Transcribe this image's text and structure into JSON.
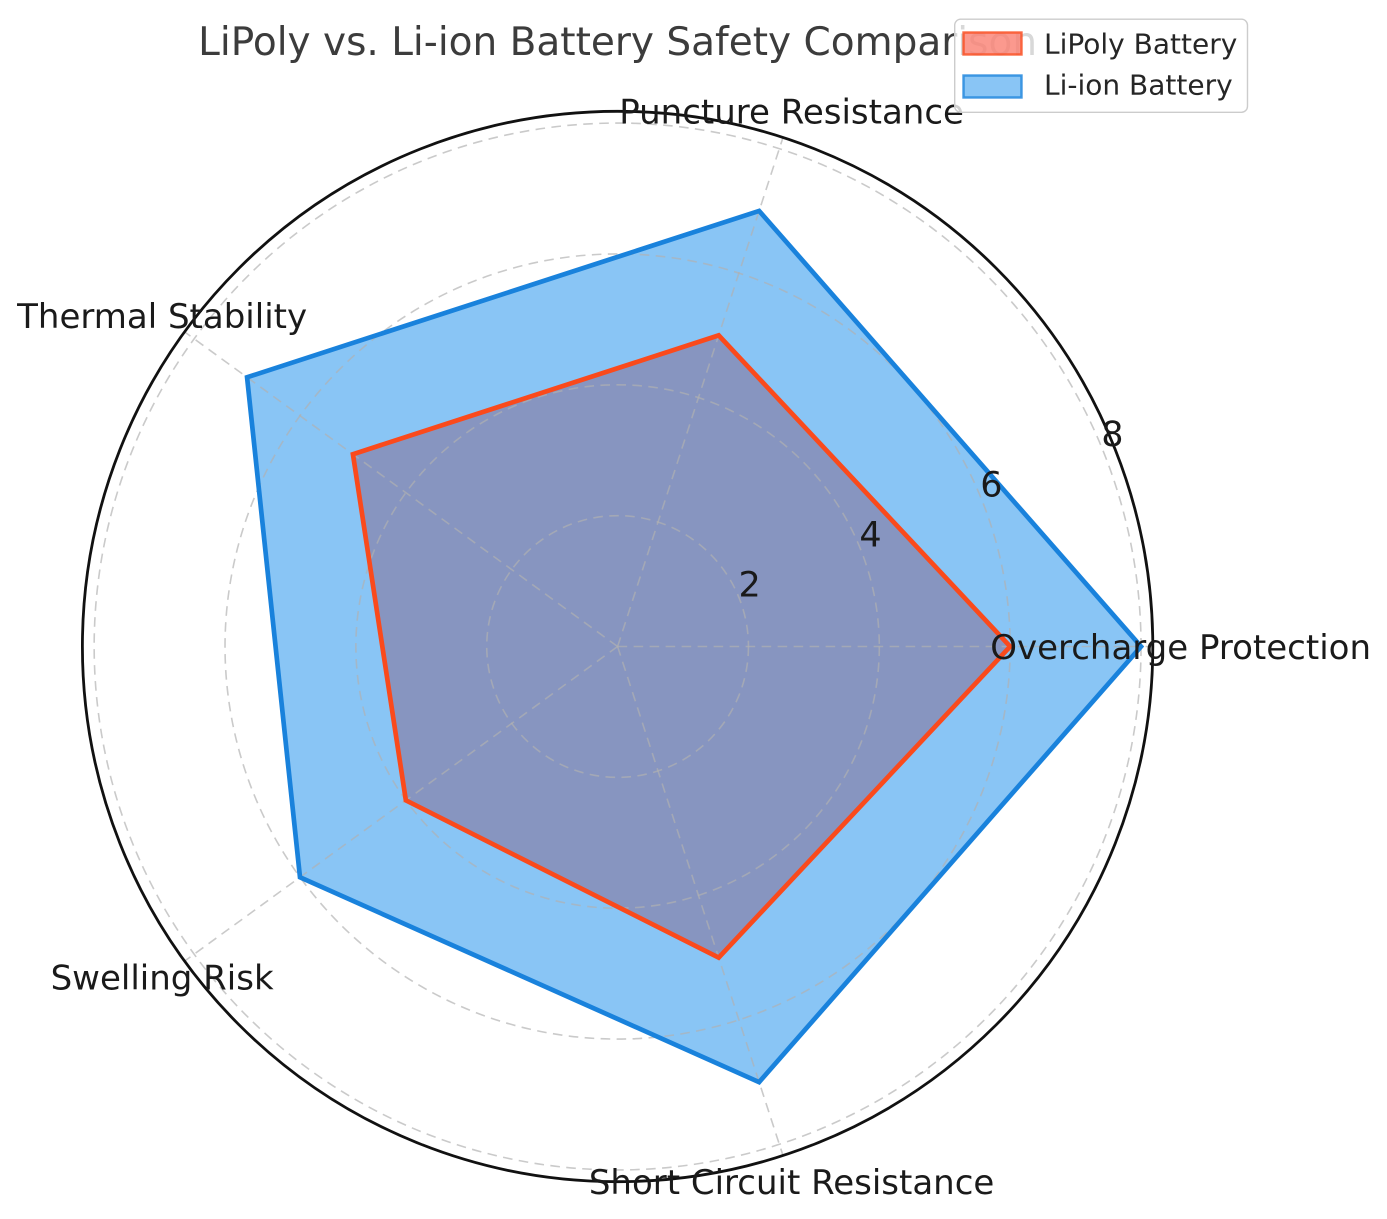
{
  "chart_data": {
    "type": "radar",
    "title": "LiPoly vs. Li-ion Battery Safety Comparison",
    "categories": [
      "Overcharge Protection",
      "Puncture Resistance",
      "Thermal Stability",
      "Swelling Risk",
      "Short Circuit Resistance"
    ],
    "angles_deg": [
      0,
      72,
      144,
      216,
      288
    ],
    "series": [
      {
        "name": "LiPoly Battery",
        "values": [
          6,
          5,
          5,
          4,
          5
        ],
        "line_color": "#fa4a1c",
        "fill_color": "rgba(250,128,114,0.8)",
        "legend_face": "rgba(250,128,114,0.8)",
        "legend_edge": "rgba(250,74,28,0.8)"
      },
      {
        "name": "Li-ion Battery",
        "values": [
          8,
          7,
          7,
          6,
          7
        ],
        "line_color": "#1982dc",
        "fill_color": "rgba(33,145,237,0.53)",
        "legend_face": "rgba(33,145,237,0.53)",
        "legend_edge": "rgba(25,130,220,0.8)"
      }
    ],
    "r_ticks": [
      2,
      4,
      6,
      8
    ],
    "r_max": 8.18,
    "grid": "dashed",
    "grid_color": "rgba(177,177,177,0.68)",
    "outer_circle_color": "#111111",
    "title_color": "#3c3c3c",
    "label_color": "#1a1a1a",
    "tick_label_color": "#1a1a1a",
    "legend_position": "upper right",
    "legend_text_color": "#262626",
    "legend_border_color": "#cccccc",
    "legend_background": "rgba(255,255,255,0.8)"
  }
}
